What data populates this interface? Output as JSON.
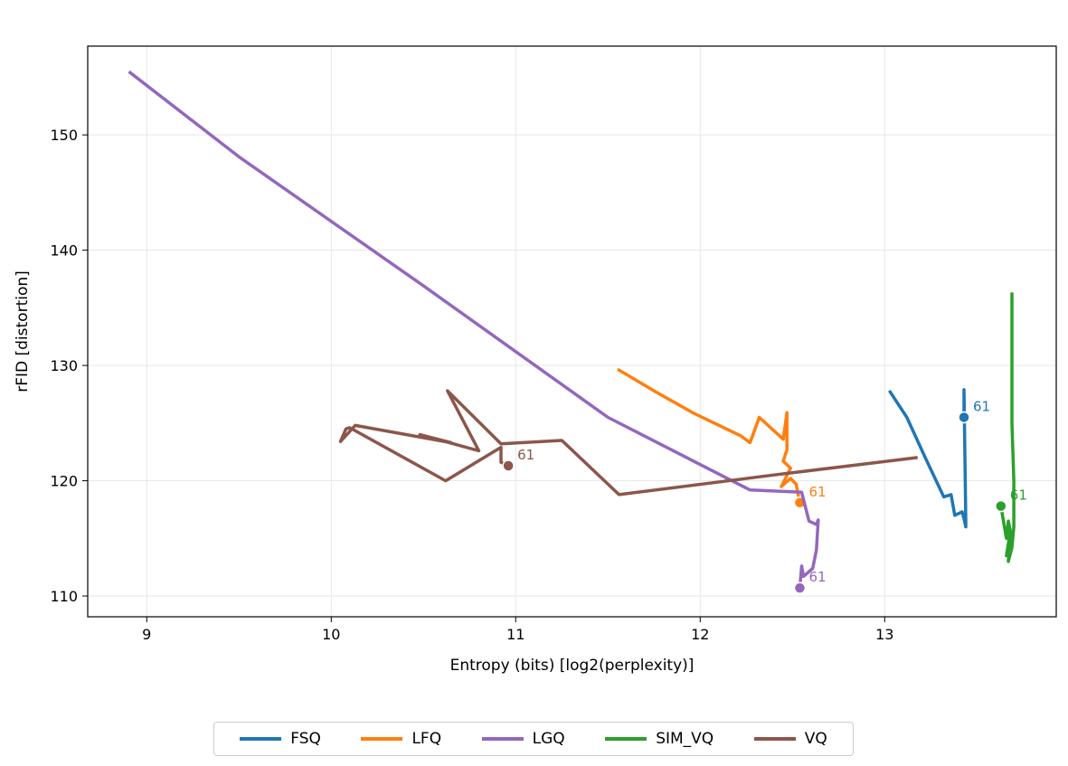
{
  "chart_data": {
    "type": "line",
    "title": "",
    "xlabel": "Entropy (bits) [log2(perplexity)]",
    "ylabel": "rFID [distortion]",
    "xlim": [
      8.68,
      13.93
    ],
    "ylim": [
      108.2,
      157.7
    ],
    "xticks": [
      9,
      10,
      11,
      12,
      13
    ],
    "yticks": [
      110,
      120,
      130,
      140,
      150
    ],
    "grid": true,
    "legend_position": "bottom-center",
    "series": [
      {
        "name": "FSQ",
        "color": "#1f77b4",
        "points": [
          [
            13.03,
            127.7
          ],
          [
            13.12,
            125.5
          ],
          [
            13.22,
            122.0
          ],
          [
            13.32,
            118.6
          ],
          [
            13.36,
            118.8
          ],
          [
            13.38,
            117.0
          ],
          [
            13.42,
            117.3
          ],
          [
            13.43,
            116.7
          ],
          [
            13.44,
            116.0
          ],
          [
            13.44,
            116.4
          ],
          [
            13.43,
            127.9
          ],
          [
            13.43,
            125.5
          ]
        ],
        "end_label": "61",
        "end_point": [
          13.43,
          125.5
        ]
      },
      {
        "name": "LFQ",
        "color": "#ff7f0e",
        "points": [
          [
            11.56,
            129.6
          ],
          [
            11.76,
            127.7
          ],
          [
            11.96,
            125.9
          ],
          [
            12.22,
            123.9
          ],
          [
            12.27,
            123.3
          ],
          [
            12.32,
            125.5
          ],
          [
            12.45,
            123.6
          ],
          [
            12.47,
            125.9
          ],
          [
            12.47,
            122.7
          ],
          [
            12.45,
            121.7
          ],
          [
            12.49,
            121.1
          ],
          [
            12.44,
            119.5
          ],
          [
            12.49,
            120.2
          ],
          [
            12.52,
            119.7
          ],
          [
            12.54,
            118.1
          ]
        ],
        "end_label": "61",
        "end_point": [
          12.54,
          118.1
        ]
      },
      {
        "name": "LGQ",
        "color": "#9467bd",
        "points": [
          [
            8.91,
            155.4
          ],
          [
            9.5,
            148.1
          ],
          [
            10.5,
            136.9
          ],
          [
            11.5,
            125.5
          ],
          [
            12.27,
            119.2
          ],
          [
            12.55,
            119.0
          ],
          [
            12.59,
            116.5
          ],
          [
            12.63,
            116.2
          ],
          [
            12.64,
            116.6
          ],
          [
            12.63,
            114.0
          ],
          [
            12.61,
            112.4
          ],
          [
            12.56,
            111.7
          ],
          [
            12.55,
            112.6
          ],
          [
            12.54,
            110.7
          ]
        ],
        "end_label": "61",
        "end_point": [
          12.54,
          110.7
        ]
      },
      {
        "name": "SIM_VQ",
        "color": "#2ca02c",
        "points": [
          [
            13.69,
            136.2
          ],
          [
            13.69,
            125.0
          ],
          [
            13.7,
            120.0
          ],
          [
            13.7,
            116.0
          ],
          [
            13.69,
            114.2
          ],
          [
            13.67,
            113.0
          ],
          [
            13.68,
            115.5
          ],
          [
            13.66,
            113.5
          ],
          [
            13.69,
            115.0
          ],
          [
            13.67,
            116.5
          ],
          [
            13.66,
            115.0
          ],
          [
            13.63,
            117.8
          ]
        ],
        "end_label": "61",
        "end_point": [
          13.63,
          117.8
        ]
      },
      {
        "name": "VQ",
        "color": "#8c564b",
        "points": [
          [
            13.17,
            122.0
          ],
          [
            12.4,
            120.5
          ],
          [
            11.56,
            118.8
          ],
          [
            11.25,
            123.5
          ],
          [
            10.92,
            123.2
          ],
          [
            10.63,
            127.8
          ],
          [
            10.8,
            122.6
          ],
          [
            10.48,
            124.0
          ],
          [
            10.65,
            123.3
          ],
          [
            10.13,
            124.8
          ],
          [
            10.05,
            123.4
          ],
          [
            10.08,
            124.5
          ],
          [
            10.1,
            124.6
          ],
          [
            10.62,
            120.0
          ],
          [
            10.92,
            122.9
          ],
          [
            10.92,
            121.6
          ],
          [
            10.96,
            121.3
          ]
        ],
        "end_label": "61",
        "end_point": [
          10.96,
          121.3
        ]
      }
    ]
  }
}
